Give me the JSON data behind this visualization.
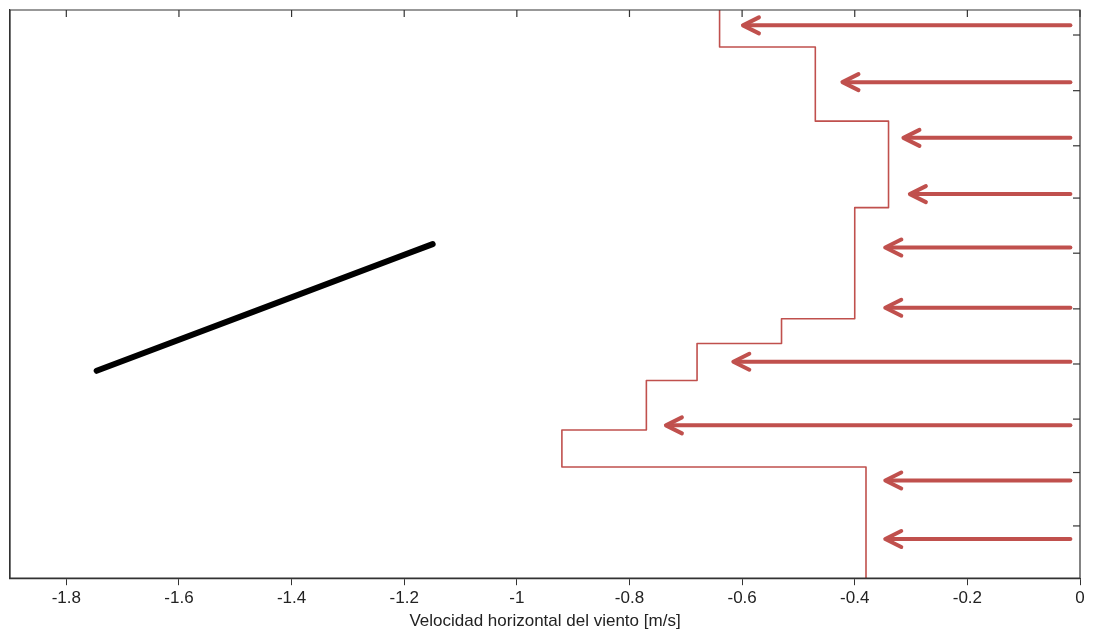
{
  "chart_data": {
    "type": "step",
    "orientation": "horizontal",
    "xlabel": "Velocidad horizontal del viento [m/s]",
    "categories": [
      null,
      null,
      null,
      null,
      null,
      null,
      null,
      null,
      null,
      null,
      null,
      null,
      null,
      null,
      null,
      null,
      null,
      null,
      null,
      null,
      null,
      null,
      null,
      null,
      null,
      null,
      null,
      null,
      null,
      null,
      null,
      null,
      null,
      null,
      null,
      null,
      null,
      null,
      null,
      null,
      null,
      null,
      null,
      null,
      null,
      null,
      null
    ],
    "series": [
      {
        "color": "#c0504d",
        "values": [
          -0.64,
          -0.64,
          -0.64,
          -0.47,
          -0.47,
          -0.47,
          -0.47,
          -0.47,
          -0.47,
          -0.34,
          -0.34,
          -0.34,
          -0.34,
          -0.34,
          -0.34,
          -0.34,
          -0.4,
          -0.4,
          -0.4,
          -0.4,
          -0.4,
          -0.4,
          -0.4,
          -0.4,
          -0.4,
          -0.53,
          -0.53,
          -0.68,
          -0.68,
          -0.68,
          -0.77,
          -0.77,
          -0.77,
          -0.77,
          -0.92,
          -0.92,
          -0.92,
          -0.38,
          -0.38,
          -0.38,
          -0.38,
          -0.38,
          -0.38,
          -0.38,
          -0.38,
          -0.38,
          -0.38
        ]
      }
    ],
    "xlim": [
      -1.9,
      0
    ],
    "xticks": [
      -1.8,
      -1.6,
      -1.4,
      -1.2,
      -1,
      -0.8,
      -0.6,
      -0.4,
      -0.2,
      0
    ],
    "tick_labels": "x",
    "grid": false,
    "legend": false,
    "marker": "none"
  }
}
